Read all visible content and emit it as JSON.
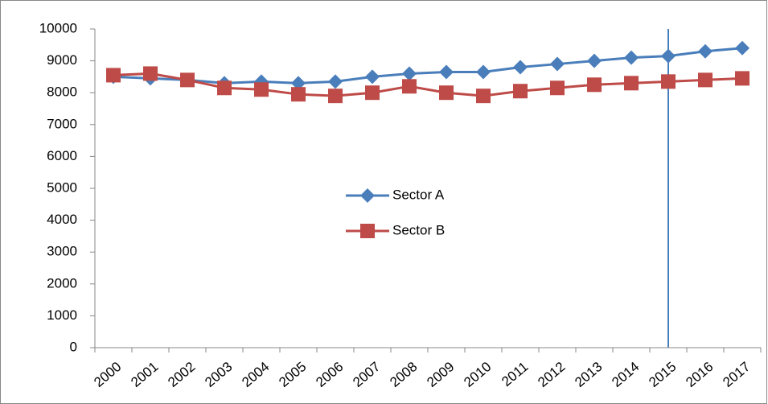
{
  "chart_data": {
    "type": "line",
    "categories": [
      "2000",
      "2001",
      "2002",
      "2003",
      "2004",
      "2005",
      "2006",
      "2007",
      "2008",
      "2009",
      "2010",
      "2011",
      "2012",
      "2013",
      "2014",
      "2015",
      "2016",
      "2017"
    ],
    "series": [
      {
        "name": "Sector A",
        "color": "#4a7ebb",
        "marker": "diamond",
        "values": [
          8500,
          8450,
          8400,
          8300,
          8350,
          8300,
          8350,
          8500,
          8600,
          8650,
          8650,
          8800,
          8900,
          9000,
          9100,
          9150,
          9300,
          9400
        ]
      },
      {
        "name": "Sector B",
        "color": "#be4b48",
        "marker": "square",
        "values": [
          8550,
          8600,
          8400,
          8150,
          8100,
          7950,
          7900,
          8000,
          8200,
          8000,
          7900,
          8050,
          8150,
          8250,
          8300,
          8350,
          8400,
          8450
        ]
      }
    ],
    "ylim": [
      0,
      10000
    ],
    "yticks": [
      0,
      1000,
      2000,
      3000,
      4000,
      5000,
      6000,
      7000,
      8000,
      9000,
      10000
    ],
    "grid": false
  }
}
